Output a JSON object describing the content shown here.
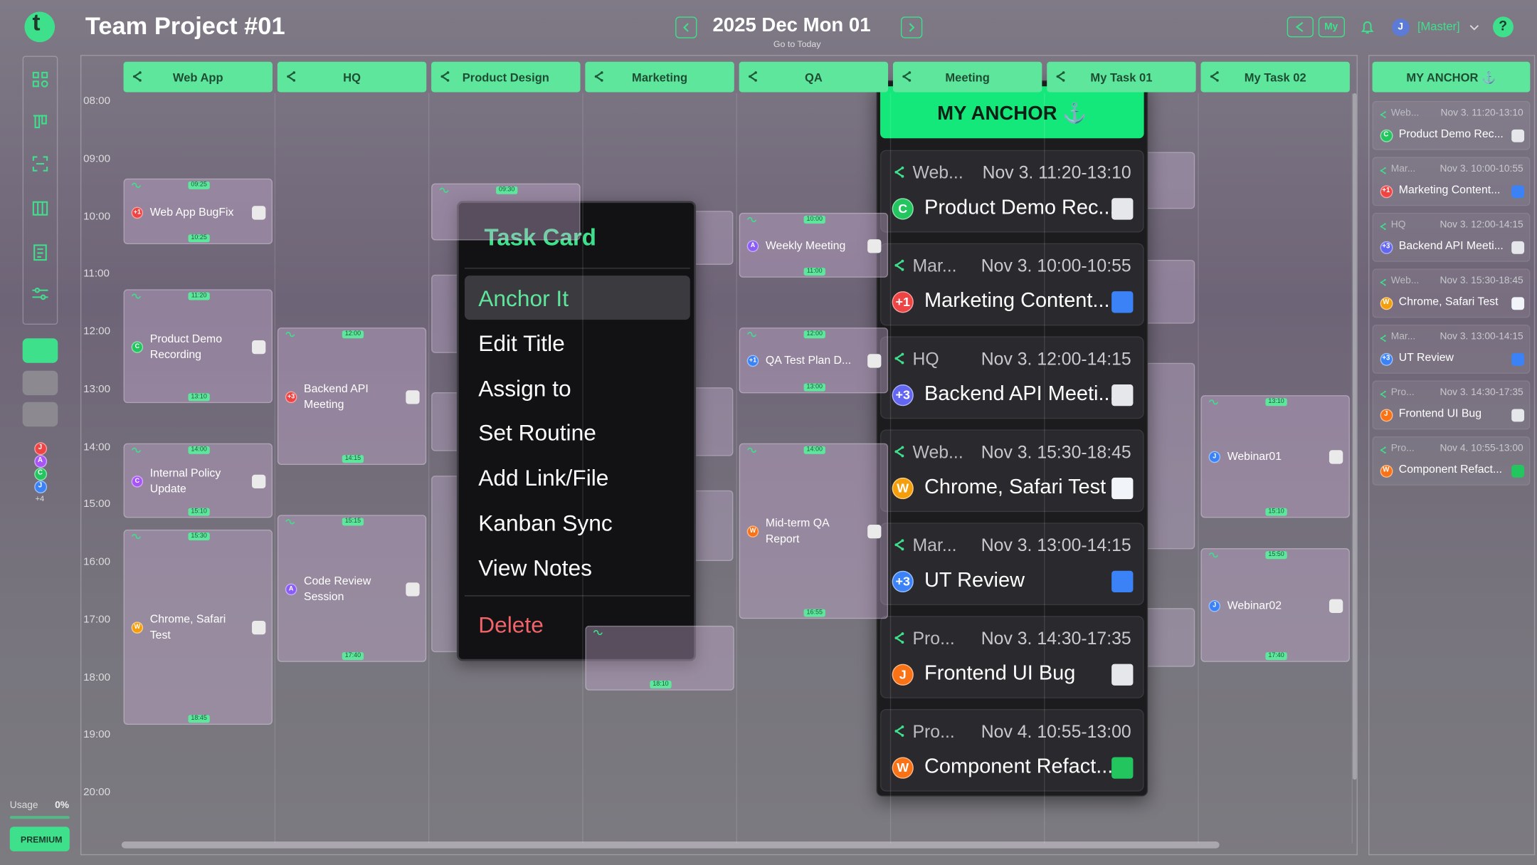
{
  "header": {
    "logo": "t",
    "title": "Team Project #01",
    "date": "2025 Dec Mon 01",
    "today": "Go to Today",
    "my": "My",
    "avatar": "J",
    "user": "[Master]",
    "help": "?"
  },
  "sidebar": {
    "avatars": [
      "J",
      "A",
      "C",
      "J"
    ],
    "more": "+4",
    "usage": "Usage",
    "usage_value": "0%",
    "premium": "PREMIUM"
  },
  "timeline": {
    "hours": [
      "08:00",
      "09:00",
      "10:00",
      "11:00",
      "12:00",
      "13:00",
      "14:00",
      "15:00",
      "16:00",
      "17:00",
      "18:00",
      "19:00",
      "20:00"
    ]
  },
  "columns": [
    {
      "name": "Web App",
      "cards": [
        {
          "start": "09:25",
          "end": "10:25",
          "title": "Web App BugFix",
          "avatar": "+1",
          "color": "#ef4444"
        },
        {
          "start": "11:20",
          "end": "13:10",
          "title": "Product Demo Recording",
          "avatar": "C",
          "color": "#22c55e"
        },
        {
          "start": "14:00",
          "end": "15:10",
          "title": "Internal Policy Update",
          "avatar": "C",
          "color": "#a855f7"
        },
        {
          "start": "15:30",
          "end": "18:45",
          "title": "Chrome, Safari Test",
          "avatar": "W",
          "color": "#f59e0b"
        }
      ]
    },
    {
      "name": "HQ",
      "cards": [
        {
          "start": "12:00",
          "end": "14:15",
          "title": "Backend API Meeting",
          "avatar": "+3",
          "color": "#ef4444"
        },
        {
          "start": "15:15",
          "end": "17:40",
          "title": "Code Review Session",
          "avatar": "A",
          "color": "#8b5cf6"
        }
      ]
    },
    {
      "name": "Product Design",
      "cards": [
        {
          "start": "09:30"
        }
      ]
    },
    {
      "name": "Marketing",
      "cards": [
        {
          "end": "18:10"
        }
      ]
    },
    {
      "name": "QA",
      "cards": [
        {
          "start": "10:00",
          "end": "11:00",
          "title": "Weekly Meeting",
          "avatar": "A",
          "color": "#8b5cf6"
        },
        {
          "start": "12:00",
          "end": "13:00",
          "title": "QA Test Plan D...",
          "avatar": "+1",
          "color": "#3b82f6"
        },
        {
          "start": "14:00",
          "end": "16:55",
          "title": "Mid-term QA Report",
          "avatar": "W",
          "color": "#f97316"
        }
      ]
    },
    {
      "name": "Meeting",
      "cards": []
    },
    {
      "name": "My Task 01",
      "cards": []
    },
    {
      "name": "My Task 02",
      "cards": [
        {
          "start": "13:10",
          "end": "15:10",
          "title": "Webinar01",
          "avatar": "J",
          "color": "#3b82f6"
        },
        {
          "start": "15:50",
          "end": "17:40",
          "title": "Webinar02",
          "avatar": "J",
          "color": "#3b82f6"
        }
      ]
    }
  ],
  "menu": {
    "title": "Task Card",
    "items": [
      "Anchor It",
      "Edit Title",
      "Assign to",
      "Set Routine",
      "Add Link/File",
      "Kanban Sync",
      "View Notes"
    ],
    "delete": "Delete"
  },
  "anchor": {
    "title": "MY ANCHOR ⚓",
    "items": [
      {
        "project": "Web...",
        "time": "Nov 3. 11:20-13:10",
        "title": "Product Demo Rec...",
        "avatar": "C",
        "color": "#22c55e",
        "icon": "#e5e7eb"
      },
      {
        "project": "Mar...",
        "time": "Nov 3. 10:00-10:55",
        "title": "Marketing Content...",
        "avatar": "+1",
        "color": "#ef4444",
        "icon": "#3b82f6"
      },
      {
        "project": "HQ",
        "time": "Nov 3. 12:00-14:15",
        "title": "Backend API Meeti...",
        "avatar": "+3",
        "color": "#6366f1",
        "icon": "#e5e7eb"
      },
      {
        "project": "Web...",
        "time": "Nov 3. 15:30-18:45",
        "title": "Chrome, Safari Test",
        "avatar": "W",
        "color": "#f59e0b",
        "icon": "#f1f5f9"
      },
      {
        "project": "Mar...",
        "time": "Nov 3. 13:00-14:15",
        "title": "UT Review",
        "avatar": "+3",
        "color": "#3b82f6",
        "icon": "#3b82f6"
      },
      {
        "project": "Pro...",
        "time": "Nov 3. 14:30-17:35",
        "title": "Frontend UI Bug",
        "avatar": "J",
        "color": "#f97316",
        "icon": "#e5e7eb"
      },
      {
        "project": "Pro...",
        "time": "Nov 4. 10:55-13:00",
        "title": "Component Refact...",
        "avatar": "W",
        "color": "#f97316",
        "icon": "#22c55e"
      }
    ]
  }
}
